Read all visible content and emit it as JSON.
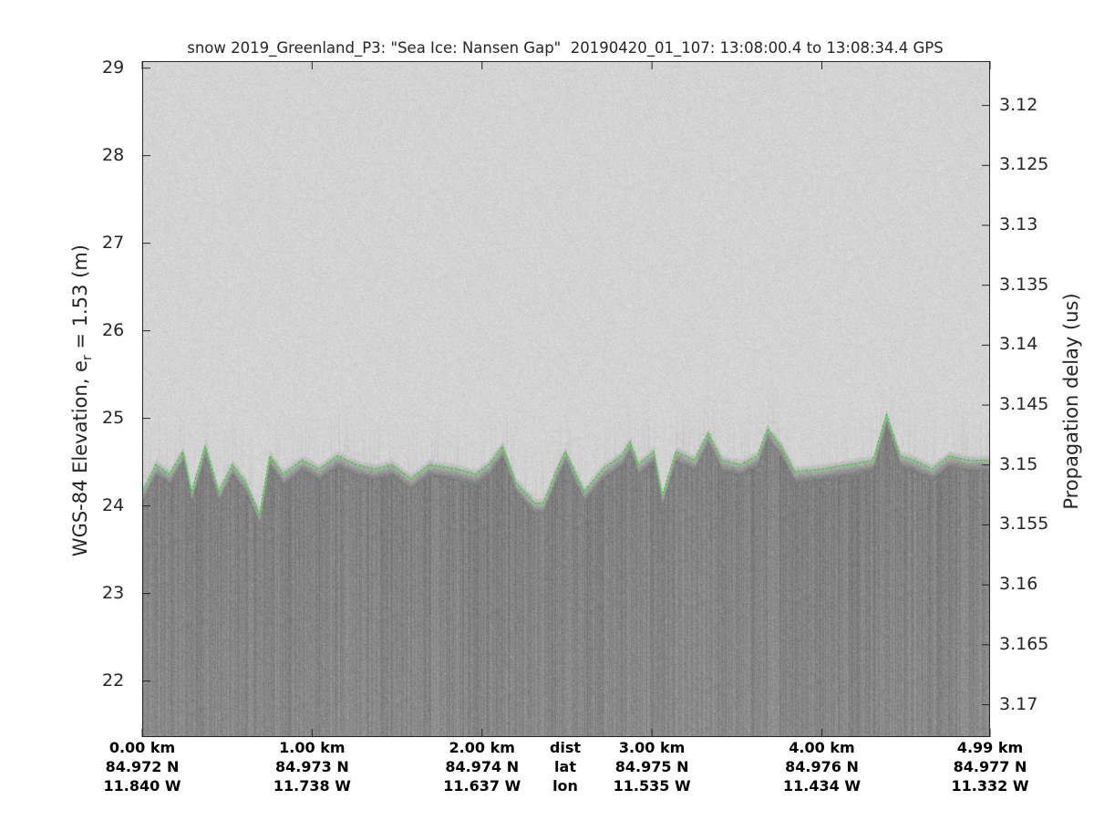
{
  "chart_data": {
    "type": "heatmap",
    "title": "snow 2019_Greenland_P3: \"Sea Ice: Nansen Gap\"  20190420_01_107: 13:08:00.4 to 13:08:34.4 GPS",
    "ylabel_left": "WGS-84 Elevation, e",
    "ylabel_left_sub": "r",
    "ylabel_left_tail": " = 1.53 (m)",
    "ylabel_right": "Propagation delay (us)",
    "ylim_left": [
      21.36,
      29.08
    ],
    "ylim_right": [
      3.1163,
      3.1727
    ],
    "yticks_left": [
      22,
      23,
      24,
      25,
      26,
      27,
      28,
      29
    ],
    "yticks_right": [
      "3.12",
      "3.125",
      "3.13",
      "3.135",
      "3.14",
      "3.145",
      "3.15",
      "3.155",
      "3.16",
      "3.165",
      "3.17"
    ],
    "xlim_km": [
      0,
      4.99
    ],
    "xticks": [
      {
        "km": 0.0,
        "dist": "0.00 km",
        "lat": "84.972 N",
        "lon": "11.840 W"
      },
      {
        "km": 1.0,
        "dist": "1.00 km",
        "lat": "84.973 N",
        "lon": "11.738 W"
      },
      {
        "km": 2.0,
        "dist": "2.00 km",
        "lat": "84.974 N",
        "lon": "11.637 W"
      },
      {
        "km": 3.0,
        "dist": "3.00 km",
        "lat": "84.975 N",
        "lon": "11.535 W"
      },
      {
        "km": 4.0,
        "dist": "4.00 km",
        "lat": "84.976 N",
        "lon": "11.434 W"
      },
      {
        "km": 4.99,
        "dist": "4.99 km",
        "lat": "84.977 N",
        "lon": "11.332 W"
      }
    ],
    "row_labels": {
      "dist": "dist",
      "lat": "lat",
      "lon": "lon"
    },
    "colormap": "gray",
    "surface_color": "#22dd22",
    "surface": {
      "x_km": [
        0.0,
        0.08,
        0.16,
        0.24,
        0.29,
        0.37,
        0.45,
        0.53,
        0.61,
        0.69,
        0.75,
        0.83,
        0.94,
        1.04,
        1.15,
        1.26,
        1.37,
        1.47,
        1.58,
        1.69,
        1.85,
        1.96,
        2.04,
        2.12,
        2.2,
        2.31,
        2.36,
        2.44,
        2.49,
        2.6,
        2.71,
        2.82,
        2.87,
        2.92,
        3.01,
        3.06,
        3.14,
        3.25,
        3.33,
        3.41,
        3.52,
        3.62,
        3.68,
        3.76,
        3.84,
        4.0,
        4.16,
        4.3,
        4.38,
        4.46,
        4.54,
        4.65,
        4.75,
        4.86,
        4.99
      ],
      "elevation_m": [
        24.16,
        24.47,
        24.36,
        24.62,
        24.16,
        24.68,
        24.16,
        24.47,
        24.26,
        23.9,
        24.57,
        24.36,
        24.52,
        24.42,
        24.57,
        24.47,
        24.42,
        24.47,
        24.31,
        24.47,
        24.42,
        24.36,
        24.47,
        24.68,
        24.26,
        24.03,
        24.03,
        24.42,
        24.62,
        24.16,
        24.42,
        24.57,
        24.73,
        24.47,
        24.62,
        24.11,
        24.62,
        24.52,
        24.83,
        24.52,
        24.47,
        24.57,
        24.88,
        24.68,
        24.39,
        24.42,
        24.47,
        24.52,
        25.04,
        24.57,
        24.52,
        24.42,
        24.57,
        24.52,
        24.52
      ]
    }
  }
}
